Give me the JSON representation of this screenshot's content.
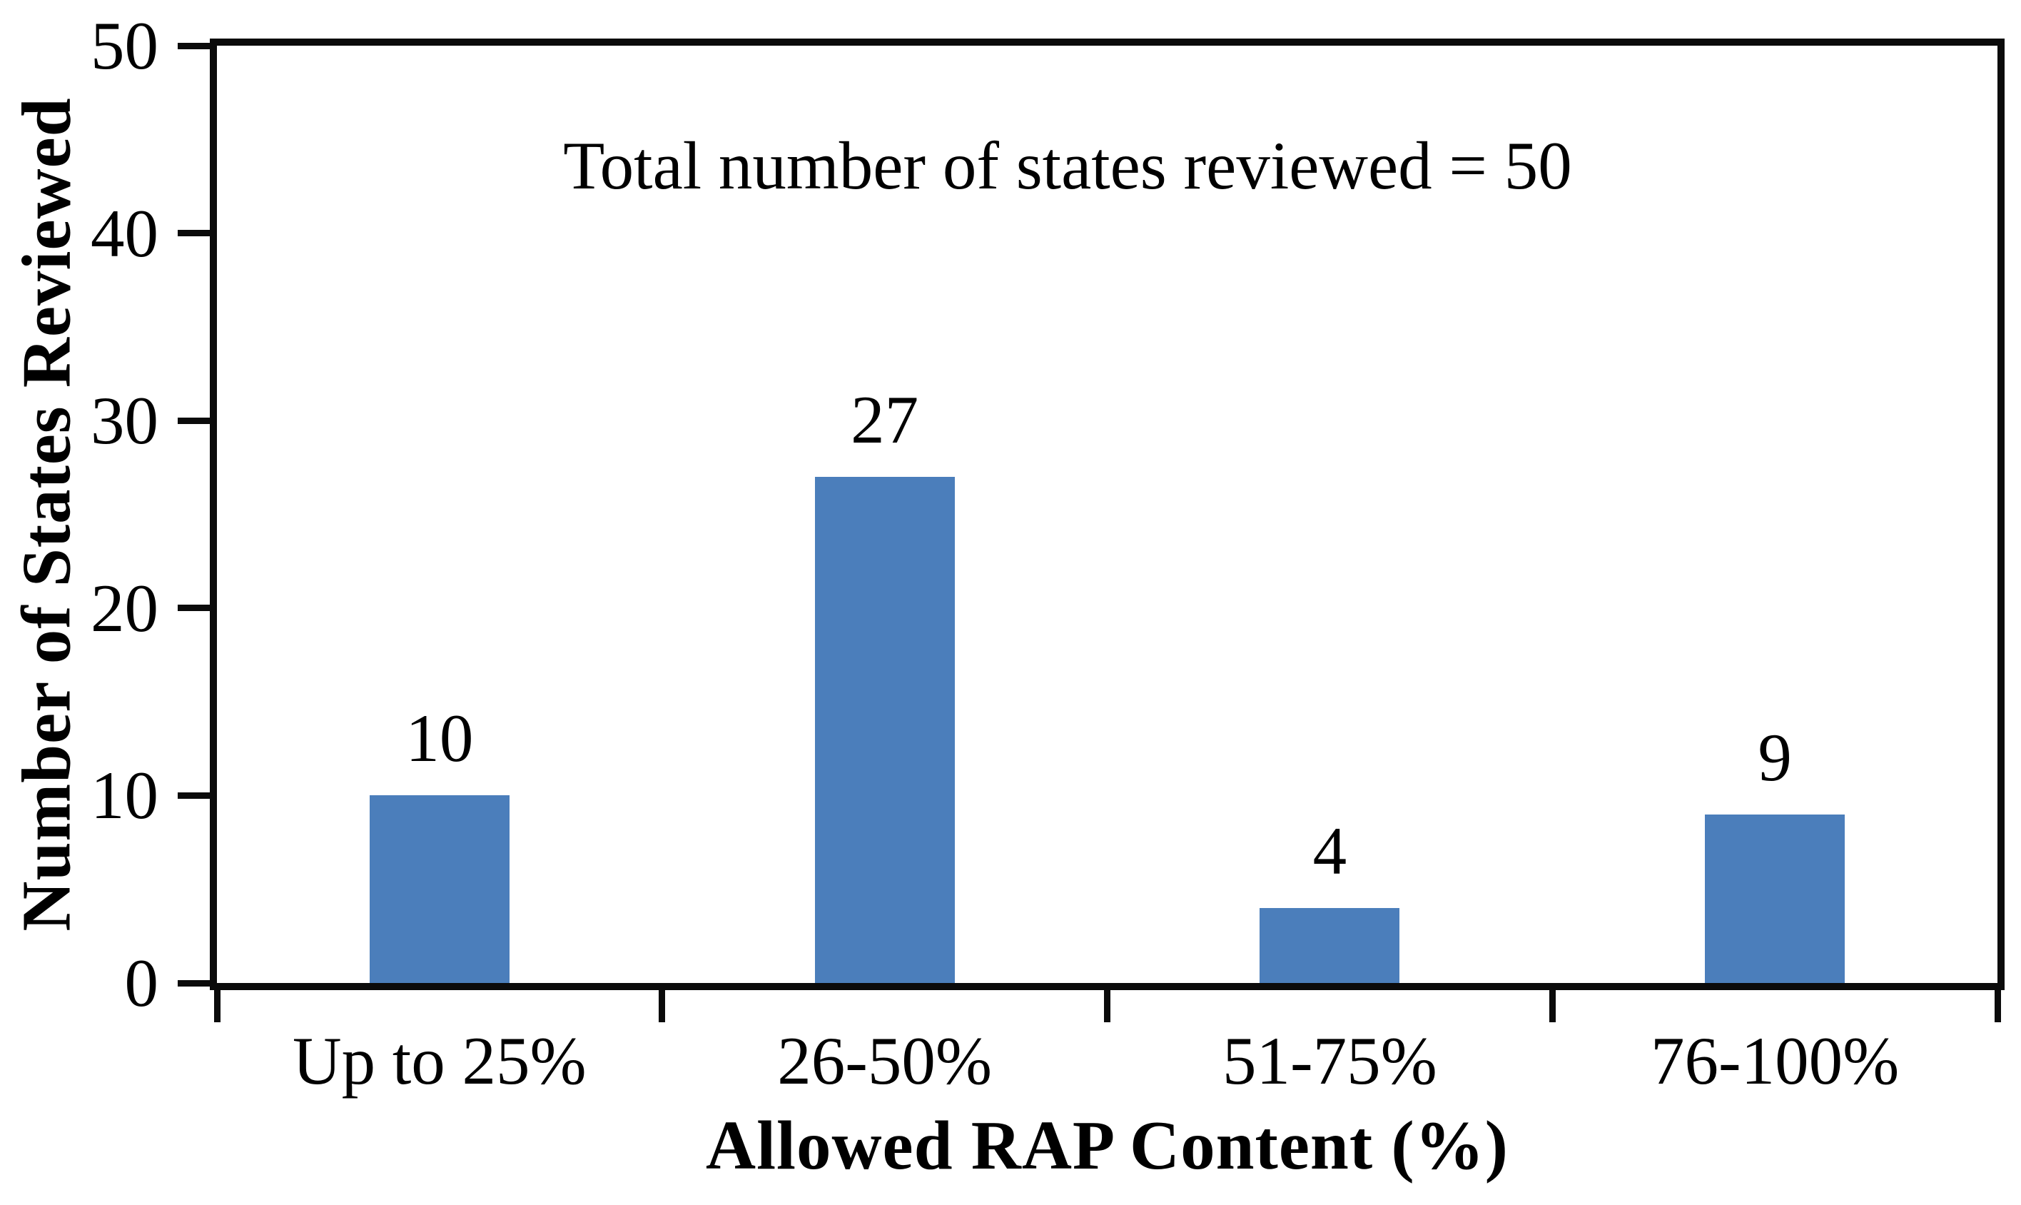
{
  "chart_data": {
    "type": "bar",
    "annotation": "Total number of states reviewed = 50",
    "categories": [
      "Up to 25%",
      "26-50%",
      "51-75%",
      "76-100%"
    ],
    "values": [
      10,
      27,
      4,
      9
    ],
    "xlabel": "Allowed RAP Content (%)",
    "ylabel": "Number of States Reviewed",
    "ylim": [
      0,
      50
    ],
    "yticks": [
      0,
      10,
      20,
      30,
      40,
      50
    ],
    "bar_color": "#4B7EBB",
    "axis_color": "#0B0B0B",
    "text_color": "#000000",
    "background": "#FFFFFF",
    "grid": false,
    "legend": false,
    "total_states": 50
  }
}
